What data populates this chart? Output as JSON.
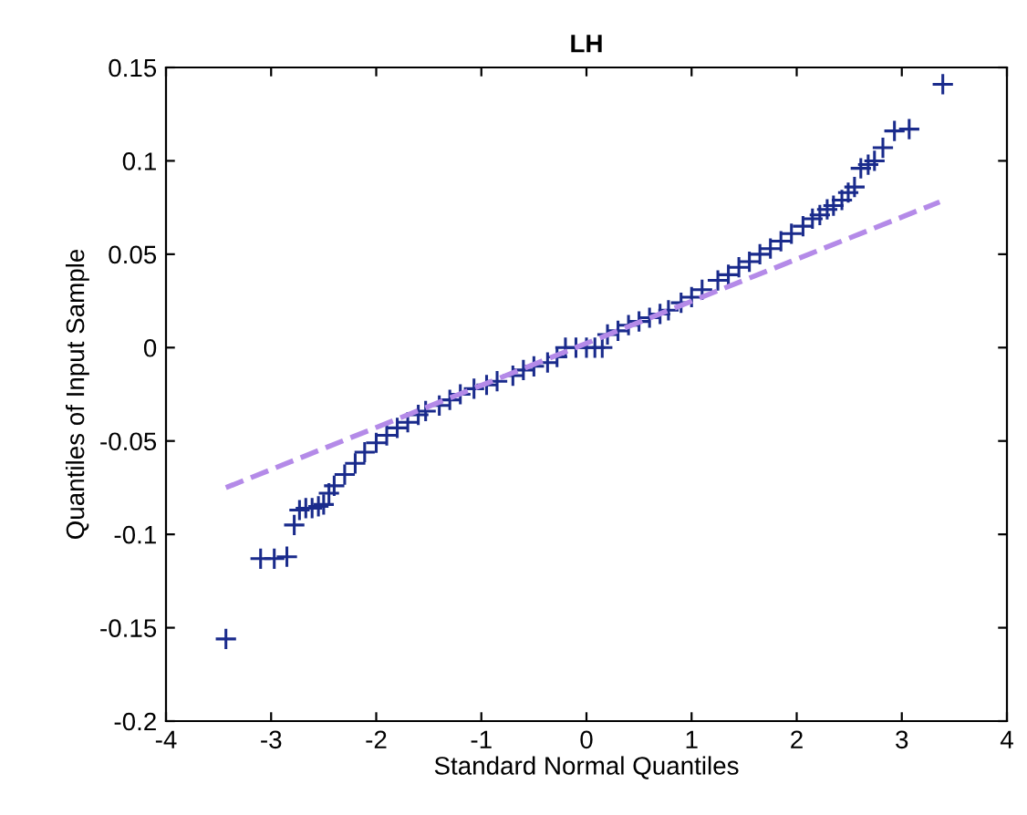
{
  "chart_data": {
    "type": "scatter",
    "title": "LH",
    "xlabel": "Standard Normal Quantiles",
    "ylabel": "Quantiles of Input Sample",
    "xlim": [
      -4,
      4
    ],
    "ylim": [
      -0.2,
      0.15
    ],
    "xticks": [
      -4,
      -3,
      -2,
      -1,
      0,
      1,
      2,
      3,
      4
    ],
    "yticks": [
      -0.2,
      -0.15,
      -0.1,
      -0.05,
      0,
      0.05,
      0.1,
      0.15
    ],
    "grid": false,
    "series": [
      {
        "marker": "cross",
        "color": "#1a2b8c",
        "x": [
          -3.43,
          -3.1,
          -2.97,
          -2.85,
          -2.78,
          -2.73,
          -2.67,
          -2.61,
          -2.55,
          -2.5,
          -2.45,
          -2.4,
          -2.3,
          -2.2,
          -2.11,
          -2.0,
          -1.9,
          -1.8,
          -1.7,
          -1.6,
          -1.53,
          -1.4,
          -1.3,
          -1.2,
          -1.07,
          -0.95,
          -0.85,
          -0.7,
          -0.6,
          -0.5,
          -0.37,
          -0.28,
          -0.2,
          -0.1,
          0.0,
          0.08,
          0.15,
          0.2,
          0.3,
          0.4,
          0.5,
          0.6,
          0.7,
          0.78,
          0.9,
          1.0,
          1.1,
          1.25,
          1.35,
          1.45,
          1.55,
          1.65,
          1.75,
          1.85,
          1.95,
          2.06,
          2.15,
          2.22,
          2.29,
          2.35,
          2.43,
          2.49,
          2.55,
          2.61,
          2.68,
          2.74,
          2.82,
          2.93,
          3.07,
          3.39
        ],
        "values": [
          -0.156,
          -0.113,
          -0.113,
          -0.112,
          -0.095,
          -0.087,
          -0.086,
          -0.086,
          -0.085,
          -0.084,
          -0.078,
          -0.074,
          -0.068,
          -0.062,
          -0.056,
          -0.051,
          -0.047,
          -0.043,
          -0.04,
          -0.036,
          -0.034,
          -0.031,
          -0.028,
          -0.025,
          -0.022,
          -0.02,
          -0.018,
          -0.015,
          -0.012,
          -0.01,
          -0.008,
          -0.005,
          0.0,
          0.0,
          0.0,
          0.0,
          0.0,
          0.007,
          0.009,
          0.012,
          0.014,
          0.016,
          0.018,
          0.02,
          0.024,
          0.027,
          0.031,
          0.036,
          0.039,
          0.043,
          0.046,
          0.05,
          0.053,
          0.057,
          0.061,
          0.065,
          0.069,
          0.071,
          0.074,
          0.076,
          0.079,
          0.083,
          0.086,
          0.096,
          0.098,
          0.1,
          0.107,
          0.116,
          0.117,
          0.141
        ]
      },
      {
        "type": "line",
        "line_style": "dashed",
        "color": "#b48ae8",
        "x": [
          -3.43,
          3.36
        ],
        "values": [
          -0.075,
          0.078
        ]
      }
    ]
  }
}
